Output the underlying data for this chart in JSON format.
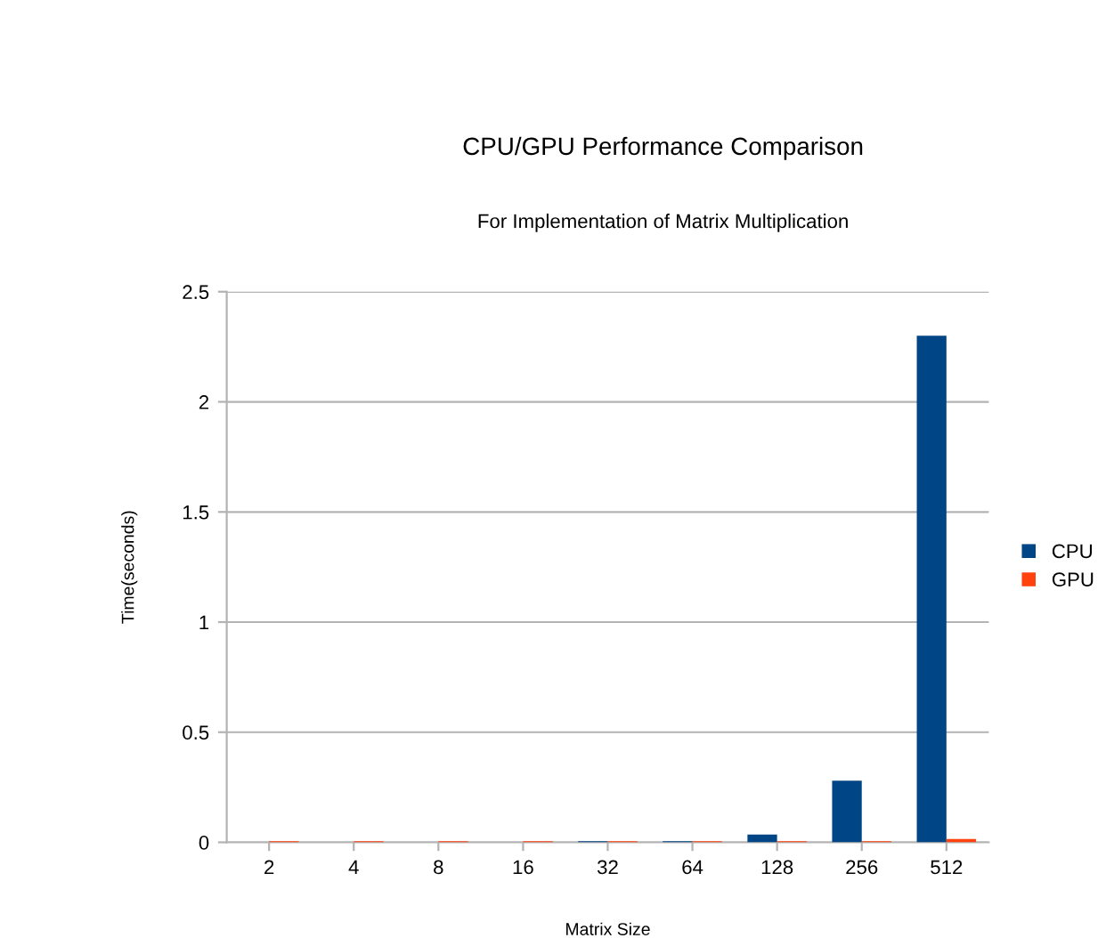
{
  "chart_data": {
    "type": "bar",
    "title": "CPU/GPU Performance Comparison",
    "subtitle": "For Implementation of Matrix Multiplication",
    "xlabel": "Matrix Size",
    "ylabel": "Time(seconds)",
    "categories": [
      "2",
      "4",
      "8",
      "16",
      "32",
      "64",
      "128",
      "256",
      "512"
    ],
    "series": [
      {
        "name": "CPU",
        "color": "#004586",
        "values": [
          0,
          0,
          0,
          0,
          0.005,
          0.005,
          0.035,
          0.28,
          2.3
        ]
      },
      {
        "name": "GPU",
        "color": "#ff420e",
        "values": [
          0.005,
          0.005,
          0.005,
          0.005,
          0.005,
          0.005,
          0.005,
          0.005,
          0.015
        ]
      }
    ],
    "ylim": [
      0,
      2.5
    ],
    "yticks": [
      0,
      0.5,
      1,
      1.5,
      2,
      2.5
    ],
    "grid": "y",
    "legend": "right"
  }
}
